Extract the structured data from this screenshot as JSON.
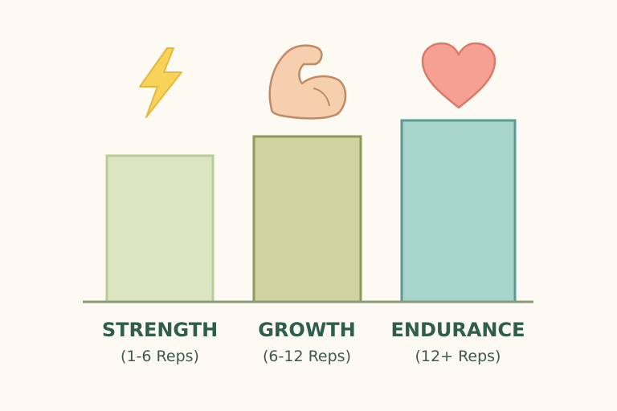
{
  "categories": [
    {
      "label": "STRENGTH",
      "subtitle": "(1-6 Reps)"
    },
    {
      "label": "GROWTH",
      "subtitle": "(6-12 Reps)"
    },
    {
      "label": "ENDURANCE",
      "subtitle": "(12+ Reps)"
    }
  ]
}
